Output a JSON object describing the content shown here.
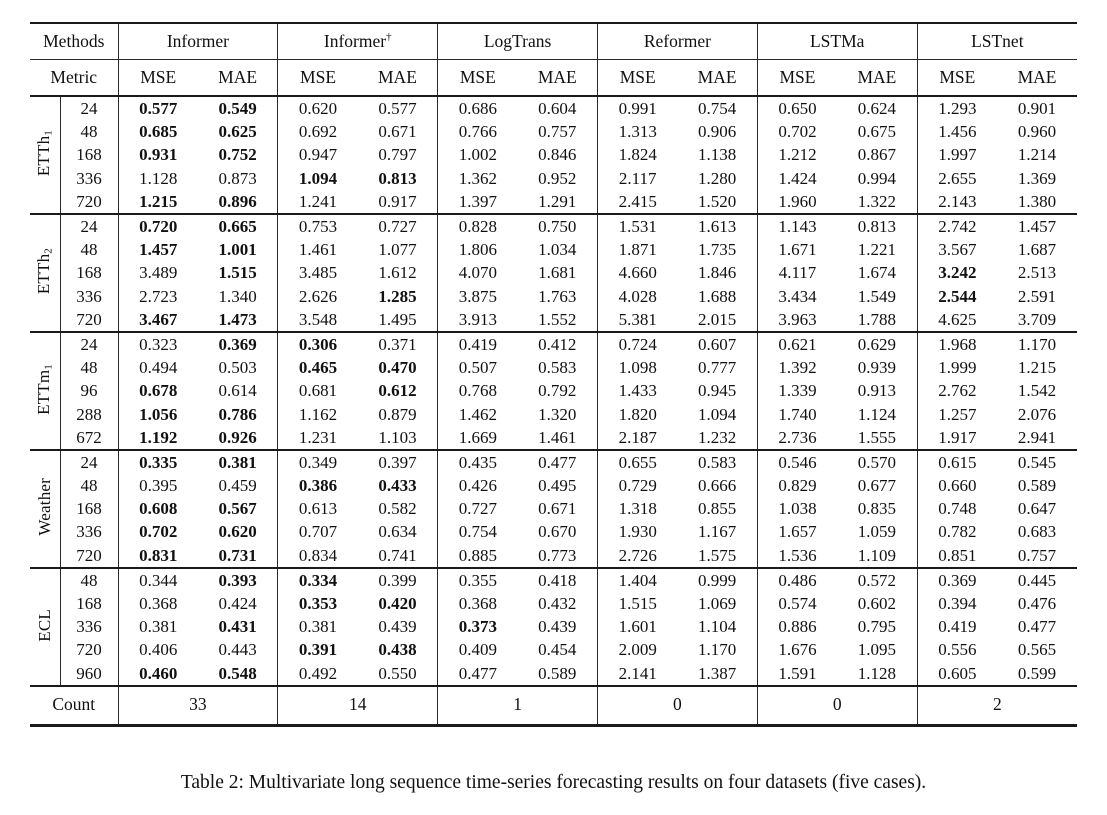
{
  "labels": {
    "methods": "Methods",
    "metric": "Metric",
    "count": "Count",
    "mse": "MSE",
    "mae": "MAE"
  },
  "methods": [
    {
      "name": "Informer",
      "sup": ""
    },
    {
      "name": "Informer",
      "sup": "†"
    },
    {
      "name": "LogTrans",
      "sup": ""
    },
    {
      "name": "Reformer",
      "sup": ""
    },
    {
      "name": "LSTMa",
      "sup": ""
    },
    {
      "name": "LSTnet",
      "sup": ""
    }
  ],
  "counts": [
    "33",
    "14",
    "1",
    "0",
    "0",
    "2"
  ],
  "datasets": [
    {
      "base": "ETTh",
      "sub": "1",
      "rows": [
        {
          "h": "24",
          "v": [
            "0.577",
            "0.549",
            "0.620",
            "0.577",
            "0.686",
            "0.604",
            "0.991",
            "0.754",
            "0.650",
            "0.624",
            "1.293",
            "0.901"
          ],
          "b": [
            1,
            1,
            0,
            0,
            0,
            0,
            0,
            0,
            0,
            0,
            0,
            0
          ]
        },
        {
          "h": "48",
          "v": [
            "0.685",
            "0.625",
            "0.692",
            "0.671",
            "0.766",
            "0.757",
            "1.313",
            "0.906",
            "0.702",
            "0.675",
            "1.456",
            "0.960"
          ],
          "b": [
            1,
            1,
            0,
            0,
            0,
            0,
            0,
            0,
            0,
            0,
            0,
            0
          ]
        },
        {
          "h": "168",
          "v": [
            "0.931",
            "0.752",
            "0.947",
            "0.797",
            "1.002",
            "0.846",
            "1.824",
            "1.138",
            "1.212",
            "0.867",
            "1.997",
            "1.214"
          ],
          "b": [
            1,
            1,
            0,
            0,
            0,
            0,
            0,
            0,
            0,
            0,
            0,
            0
          ]
        },
        {
          "h": "336",
          "v": [
            "1.128",
            "0.873",
            "1.094",
            "0.813",
            "1.362",
            "0.952",
            "2.117",
            "1.280",
            "1.424",
            "0.994",
            "2.655",
            "1.369"
          ],
          "b": [
            0,
            0,
            1,
            1,
            0,
            0,
            0,
            0,
            0,
            0,
            0,
            0
          ]
        },
        {
          "h": "720",
          "v": [
            "1.215",
            "0.896",
            "1.241",
            "0.917",
            "1.397",
            "1.291",
            "2.415",
            "1.520",
            "1.960",
            "1.322",
            "2.143",
            "1.380"
          ],
          "b": [
            1,
            1,
            0,
            0,
            0,
            0,
            0,
            0,
            0,
            0,
            0,
            0
          ]
        }
      ]
    },
    {
      "base": "ETTh",
      "sub": "2",
      "rows": [
        {
          "h": "24",
          "v": [
            "0.720",
            "0.665",
            "0.753",
            "0.727",
            "0.828",
            "0.750",
            "1.531",
            "1.613",
            "1.143",
            "0.813",
            "2.742",
            "1.457"
          ],
          "b": [
            1,
            1,
            0,
            0,
            0,
            0,
            0,
            0,
            0,
            0,
            0,
            0
          ]
        },
        {
          "h": "48",
          "v": [
            "1.457",
            "1.001",
            "1.461",
            "1.077",
            "1.806",
            "1.034",
            "1.871",
            "1.735",
            "1.671",
            "1.221",
            "3.567",
            "1.687"
          ],
          "b": [
            1,
            1,
            0,
            0,
            0,
            0,
            0,
            0,
            0,
            0,
            0,
            0
          ]
        },
        {
          "h": "168",
          "v": [
            "3.489",
            "1.515",
            "3.485",
            "1.612",
            "4.070",
            "1.681",
            "4.660",
            "1.846",
            "4.117",
            "1.674",
            "3.242",
            "2.513"
          ],
          "b": [
            0,
            1,
            0,
            0,
            0,
            0,
            0,
            0,
            0,
            0,
            1,
            0
          ]
        },
        {
          "h": "336",
          "v": [
            "2.723",
            "1.340",
            "2.626",
            "1.285",
            "3.875",
            "1.763",
            "4.028",
            "1.688",
            "3.434",
            "1.549",
            "2.544",
            "2.591"
          ],
          "b": [
            0,
            0,
            0,
            1,
            0,
            0,
            0,
            0,
            0,
            0,
            1,
            0
          ]
        },
        {
          "h": "720",
          "v": [
            "3.467",
            "1.473",
            "3.548",
            "1.495",
            "3.913",
            "1.552",
            "5.381",
            "2.015",
            "3.963",
            "1.788",
            "4.625",
            "3.709"
          ],
          "b": [
            1,
            1,
            0,
            0,
            0,
            0,
            0,
            0,
            0,
            0,
            0,
            0
          ]
        }
      ]
    },
    {
      "base": "ETTm",
      "sub": "1",
      "rows": [
        {
          "h": "24",
          "v": [
            "0.323",
            "0.369",
            "0.306",
            "0.371",
            "0.419",
            "0.412",
            "0.724",
            "0.607",
            "0.621",
            "0.629",
            "1.968",
            "1.170"
          ],
          "b": [
            0,
            1,
            1,
            0,
            0,
            0,
            0,
            0,
            0,
            0,
            0,
            0
          ]
        },
        {
          "h": "48",
          "v": [
            "0.494",
            "0.503",
            "0.465",
            "0.470",
            "0.507",
            "0.583",
            "1.098",
            "0.777",
            "1.392",
            "0.939",
            "1.999",
            "1.215"
          ],
          "b": [
            0,
            0,
            1,
            1,
            0,
            0,
            0,
            0,
            0,
            0,
            0,
            0
          ]
        },
        {
          "h": "96",
          "v": [
            "0.678",
            "0.614",
            "0.681",
            "0.612",
            "0.768",
            "0.792",
            "1.433",
            "0.945",
            "1.339",
            "0.913",
            "2.762",
            "1.542"
          ],
          "b": [
            1,
            0,
            0,
            1,
            0,
            0,
            0,
            0,
            0,
            0,
            0,
            0
          ]
        },
        {
          "h": "288",
          "v": [
            "1.056",
            "0.786",
            "1.162",
            "0.879",
            "1.462",
            "1.320",
            "1.820",
            "1.094",
            "1.740",
            "1.124",
            "1.257",
            "2.076"
          ],
          "b": [
            1,
            1,
            0,
            0,
            0,
            0,
            0,
            0,
            0,
            0,
            0,
            0
          ]
        },
        {
          "h": "672",
          "v": [
            "1.192",
            "0.926",
            "1.231",
            "1.103",
            "1.669",
            "1.461",
            "2.187",
            "1.232",
            "2.736",
            "1.555",
            "1.917",
            "2.941"
          ],
          "b": [
            1,
            1,
            0,
            0,
            0,
            0,
            0,
            0,
            0,
            0,
            0,
            0
          ]
        }
      ]
    },
    {
      "base": "Weather",
      "sub": "",
      "rows": [
        {
          "h": "24",
          "v": [
            "0.335",
            "0.381",
            "0.349",
            "0.397",
            "0.435",
            "0.477",
            "0.655",
            "0.583",
            "0.546",
            "0.570",
            "0.615",
            "0.545"
          ],
          "b": [
            1,
            1,
            0,
            0,
            0,
            0,
            0,
            0,
            0,
            0,
            0,
            0
          ]
        },
        {
          "h": "48",
          "v": [
            "0.395",
            "0.459",
            "0.386",
            "0.433",
            "0.426",
            "0.495",
            "0.729",
            "0.666",
            "0.829",
            "0.677",
            "0.660",
            "0.589"
          ],
          "b": [
            0,
            0,
            1,
            1,
            0,
            0,
            0,
            0,
            0,
            0,
            0,
            0
          ]
        },
        {
          "h": "168",
          "v": [
            "0.608",
            "0.567",
            "0.613",
            "0.582",
            "0.727",
            "0.671",
            "1.318",
            "0.855",
            "1.038",
            "0.835",
            "0.748",
            "0.647"
          ],
          "b": [
            1,
            1,
            0,
            0,
            0,
            0,
            0,
            0,
            0,
            0,
            0,
            0
          ]
        },
        {
          "h": "336",
          "v": [
            "0.702",
            "0.620",
            "0.707",
            "0.634",
            "0.754",
            "0.670",
            "1.930",
            "1.167",
            "1.657",
            "1.059",
            "0.782",
            "0.683"
          ],
          "b": [
            1,
            1,
            0,
            0,
            0,
            0,
            0,
            0,
            0,
            0,
            0,
            0
          ]
        },
        {
          "h": "720",
          "v": [
            "0.831",
            "0.731",
            "0.834",
            "0.741",
            "0.885",
            "0.773",
            "2.726",
            "1.575",
            "1.536",
            "1.109",
            "0.851",
            "0.757"
          ],
          "b": [
            1,
            1,
            0,
            0,
            0,
            0,
            0,
            0,
            0,
            0,
            0,
            0
          ]
        }
      ]
    },
    {
      "base": "ECL",
      "sub": "",
      "rows": [
        {
          "h": "48",
          "v": [
            "0.344",
            "0.393",
            "0.334",
            "0.399",
            "0.355",
            "0.418",
            "1.404",
            "0.999",
            "0.486",
            "0.572",
            "0.369",
            "0.445"
          ],
          "b": [
            0,
            1,
            1,
            0,
            0,
            0,
            0,
            0,
            0,
            0,
            0,
            0
          ]
        },
        {
          "h": "168",
          "v": [
            "0.368",
            "0.424",
            "0.353",
            "0.420",
            "0.368",
            "0.432",
            "1.515",
            "1.069",
            "0.574",
            "0.602",
            "0.394",
            "0.476"
          ],
          "b": [
            0,
            0,
            1,
            1,
            0,
            0,
            0,
            0,
            0,
            0,
            0,
            0
          ]
        },
        {
          "h": "336",
          "v": [
            "0.381",
            "0.431",
            "0.381",
            "0.439",
            "0.373",
            "0.439",
            "1.601",
            "1.104",
            "0.886",
            "0.795",
            "0.419",
            "0.477"
          ],
          "b": [
            0,
            1,
            0,
            0,
            1,
            0,
            0,
            0,
            0,
            0,
            0,
            0
          ]
        },
        {
          "h": "720",
          "v": [
            "0.406",
            "0.443",
            "0.391",
            "0.438",
            "0.409",
            "0.454",
            "2.009",
            "1.170",
            "1.676",
            "1.095",
            "0.556",
            "0.565"
          ],
          "b": [
            0,
            0,
            1,
            1,
            0,
            0,
            0,
            0,
            0,
            0,
            0,
            0
          ]
        },
        {
          "h": "960",
          "v": [
            "0.460",
            "0.548",
            "0.492",
            "0.550",
            "0.477",
            "0.589",
            "2.141",
            "1.387",
            "1.591",
            "1.128",
            "0.605",
            "0.599"
          ],
          "b": [
            1,
            1,
            0,
            0,
            0,
            0,
            0,
            0,
            0,
            0,
            0,
            0
          ]
        }
      ]
    }
  ],
  "caption": "Table 2: Multivariate long sequence time-series forecasting results on four datasets (five cases)."
}
